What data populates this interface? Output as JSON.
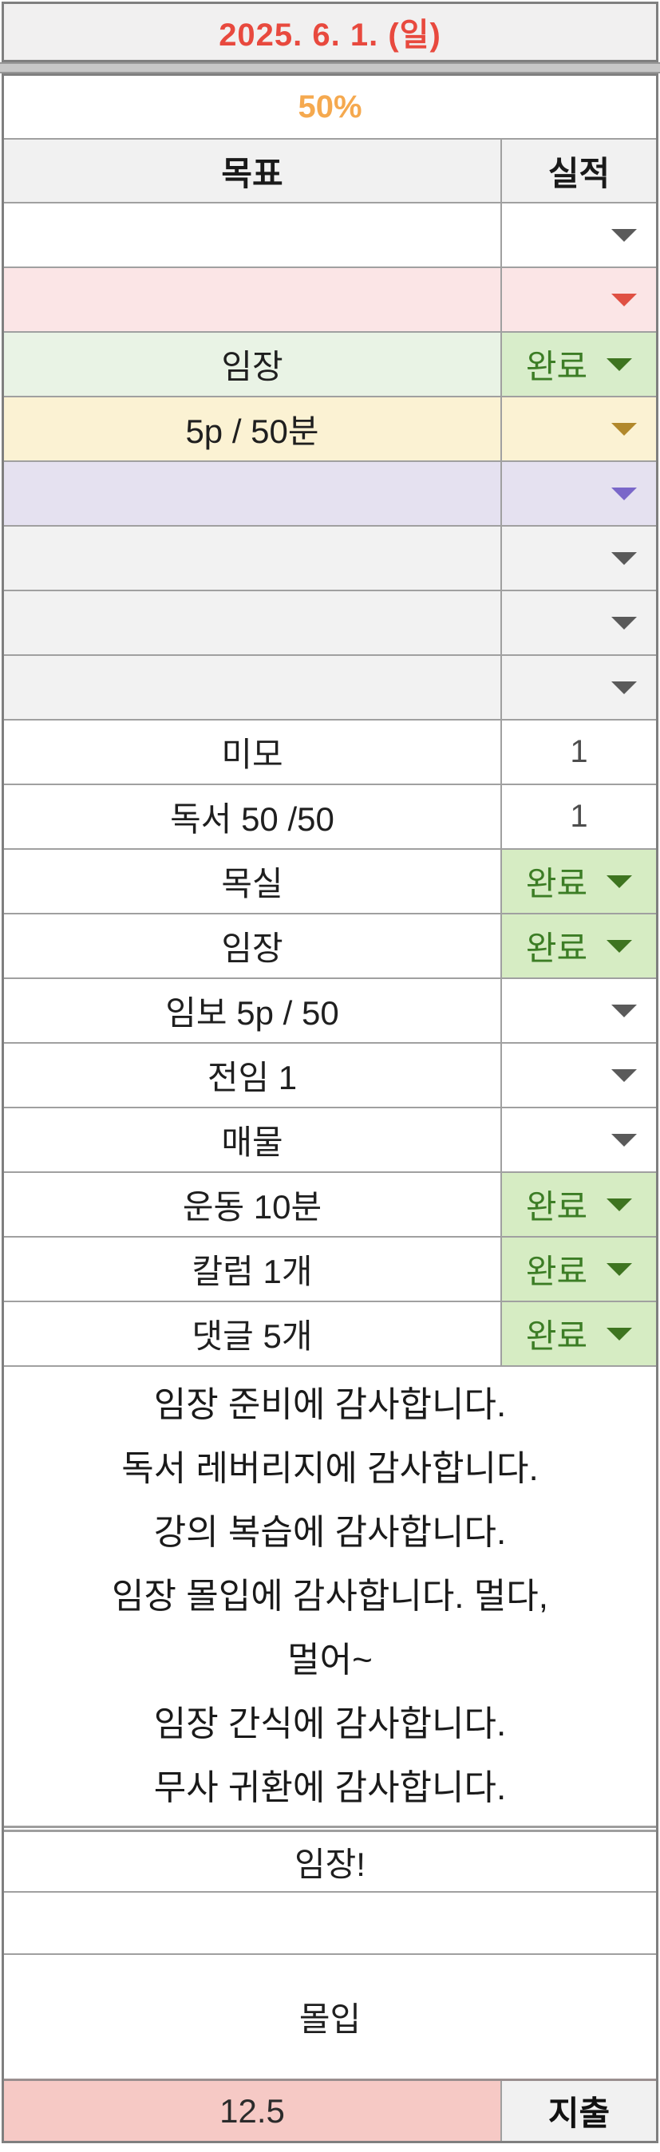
{
  "date_header": {
    "text": "2025. 6. 1. (일)"
  },
  "summary": {
    "percent": "50%"
  },
  "table": {
    "headers": {
      "goal": "목표",
      "result": "실적"
    },
    "labels": {
      "done": "완료"
    },
    "rows": [
      {
        "goal": "",
        "kind": "arrow",
        "arrow": "gray",
        "goal_bg": "#ffffff",
        "result_bg": "#ffffff"
      },
      {
        "goal": "",
        "kind": "arrow",
        "arrow": "red",
        "goal_bg": "#fbe5e6",
        "result_bg": "#fbe5e6"
      },
      {
        "goal": "임장",
        "kind": "done",
        "goal_bg": "#e9f3e5",
        "result_bg": "#d8edca"
      },
      {
        "goal": "5p / 50분",
        "kind": "arrow",
        "arrow": "olive",
        "goal_bg": "#fbf2d3",
        "result_bg": "#fbf2d3"
      },
      {
        "goal": "",
        "kind": "arrow",
        "arrow": "purple",
        "goal_bg": "#e5e1f0",
        "result_bg": "#e5e1f0"
      },
      {
        "goal": "",
        "kind": "arrow",
        "arrow": "gray",
        "goal_bg": "#f2f2f2",
        "result_bg": "#f2f2f2"
      },
      {
        "goal": "",
        "kind": "arrow",
        "arrow": "gray",
        "goal_bg": "#f2f2f2",
        "result_bg": "#f2f2f2"
      },
      {
        "goal": "",
        "kind": "arrow",
        "arrow": "gray",
        "goal_bg": "#f2f2f2",
        "result_bg": "#f2f2f2"
      },
      {
        "goal": "미모",
        "kind": "value",
        "value": "1",
        "goal_bg": "#ffffff",
        "result_bg": "#ffffff"
      },
      {
        "goal": "독서 50 /50",
        "kind": "value",
        "value": "1",
        "goal_bg": "#ffffff",
        "result_bg": "#ffffff"
      },
      {
        "goal": "목실",
        "kind": "done",
        "goal_bg": "#ffffff",
        "result_bg": "#d6ecc3"
      },
      {
        "goal": "임장",
        "kind": "done",
        "goal_bg": "#ffffff",
        "result_bg": "#d6ecc3"
      },
      {
        "goal": "임보 5p / 50",
        "kind": "arrow",
        "arrow": "gray",
        "goal_bg": "#ffffff",
        "result_bg": "#ffffff"
      },
      {
        "goal": "전임 1",
        "kind": "arrow",
        "arrow": "gray",
        "goal_bg": "#ffffff",
        "result_bg": "#ffffff"
      },
      {
        "goal": "매물",
        "kind": "arrow",
        "arrow": "gray",
        "goal_bg": "#ffffff",
        "result_bg": "#ffffff"
      },
      {
        "goal": "운동 10분",
        "kind": "done",
        "goal_bg": "#ffffff",
        "result_bg": "#d6ecc3"
      },
      {
        "goal": "칼럼 1개",
        "kind": "done",
        "goal_bg": "#ffffff",
        "result_bg": "#d6ecc3"
      },
      {
        "goal": "댓글 5개",
        "kind": "done",
        "goal_bg": "#ffffff",
        "result_bg": "#d6ecc3"
      }
    ]
  },
  "notes": {
    "lines": [
      "임장 준비에 감사합니다.",
      "독서 레버리지에 감사합니다.",
      "강의 복습에 감사합니다.",
      "임장 몰입에 감사합니다. 멀다,",
      "멀어~",
      "임장 간식에 감사합니다.",
      "무사 귀환에 감사합니다."
    ]
  },
  "footer": {
    "visit": "임장!",
    "empty": "",
    "focus": "몰입",
    "expense_value": "12.5",
    "expense_label": "지출"
  },
  "colors": {
    "arrow_gray": "#5a5a5a",
    "arrow_red": "#e05043",
    "arrow_olive": "#b1882b",
    "arrow_purple": "#7a67c9",
    "arrow_green": "#3e7420",
    "done_text": "#3c7d25",
    "date_text": "#e8493e",
    "percent_text": "#f5a94f",
    "expense_bg": "#f6c9c5"
  }
}
